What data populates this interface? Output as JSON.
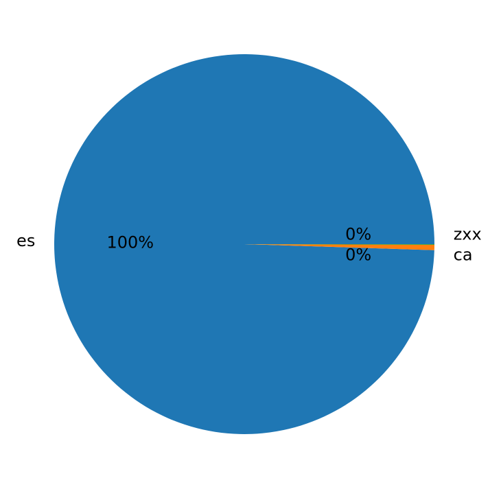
{
  "chart_data": {
    "type": "pie",
    "title": "",
    "start_angle_deg": 0,
    "direction": "counterclockwise",
    "slices": [
      {
        "label": "es",
        "value": 99.5,
        "pct_label": "100%",
        "color": "#1f77b4"
      },
      {
        "label": "ca",
        "value": 0.45,
        "pct_label": "0%",
        "color": "#ff7f0e"
      },
      {
        "label": "zxx",
        "value": 0.05,
        "pct_label": "0%",
        "color": "#2ca02c"
      }
    ],
    "legend": "none"
  }
}
